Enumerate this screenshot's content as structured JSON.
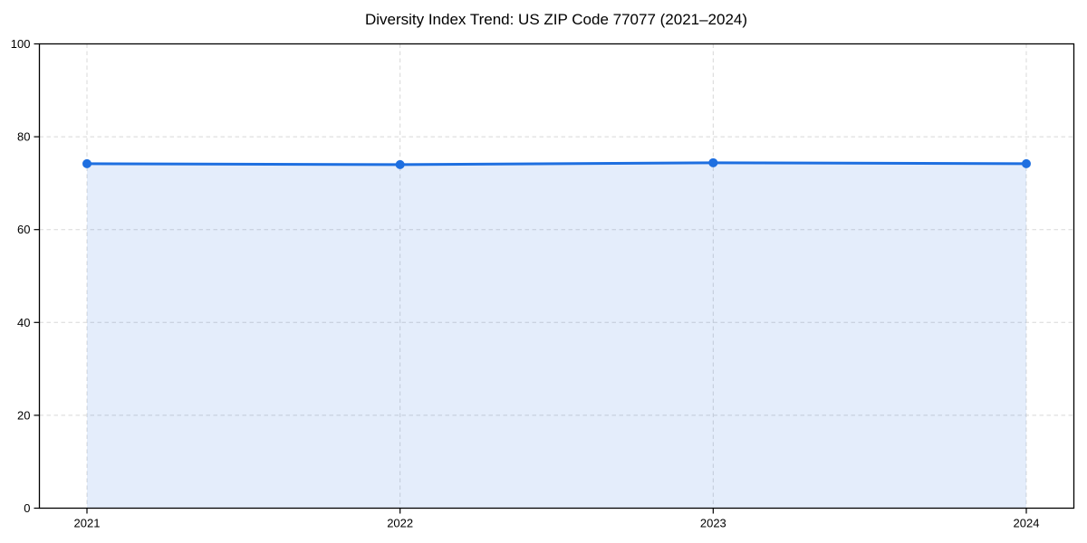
{
  "chart_data": {
    "type": "line",
    "title": "Diversity Index Trend: US ZIP Code 77077 (2021–2024)",
    "xlabel": "",
    "ylabel": "",
    "x": [
      2021,
      2022,
      2023,
      2024
    ],
    "xticklabels": [
      "2021",
      "2022",
      "2023",
      "2024"
    ],
    "series": [
      {
        "name": "Diversity Index",
        "values": [
          74.2,
          74.0,
          74.4,
          74.2
        ]
      }
    ],
    "yticks": [
      0,
      20,
      40,
      60,
      80,
      100
    ],
    "ylim": [
      0,
      100
    ],
    "grid": true,
    "grid_style": "dashed",
    "legend_position": "none",
    "area_fill": true,
    "area_fill_opacity": 0.12,
    "marker": "circle",
    "colors": {
      "line": "#1e6fe0",
      "marker": "#1e6fe0",
      "area": "#1e6fe0",
      "grid": "#d8d8d8",
      "axis": "#000000",
      "text": "#000000",
      "background": "#ffffff"
    }
  }
}
